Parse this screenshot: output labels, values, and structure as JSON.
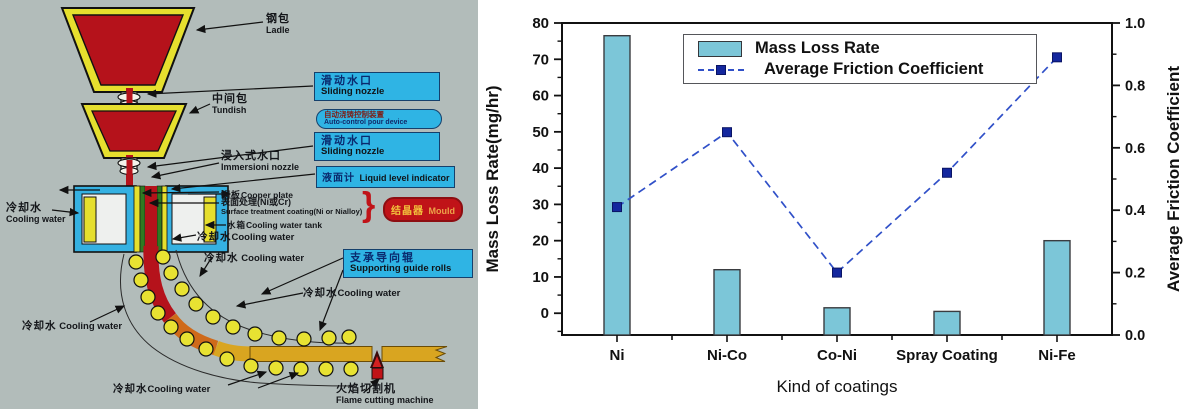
{
  "figure": {
    "left_panel": "continuous-casting-machine-diagram",
    "right_panel": "coatings-performance-chart"
  },
  "diagram": {
    "background_color": "#b2bcba",
    "callout_box_color": "#2fb4e4",
    "steel_color": "#b5121b",
    "vessel_wall_color": "#e6df2e",
    "brace": "}",
    "labels": {
      "ladle": {
        "zh": "钢包",
        "en": "Ladle"
      },
      "sliding_nozzle_1": {
        "zh": "滑动水口",
        "en": "Sliding nozzle"
      },
      "tundish": {
        "zh": "中间包",
        "en": "Tundish"
      },
      "auto_control": {
        "zh": "自动浇铸控制装置",
        "en": "Auto-control pour device"
      },
      "sliding_nozzle_2": {
        "zh": "滑动水口",
        "en": "Sliding nozzle"
      },
      "immersion_nozzle": {
        "zh": "浸入式水口",
        "en": "Immersioni nozzle"
      },
      "liquid_level": {
        "zh": "液面计",
        "en": "Liquid level indicator"
      },
      "copper_plate": {
        "zh": "铜板",
        "en": "Cooper plate"
      },
      "surface_treatment": {
        "zh": "表面处理(Ni或Cr)",
        "en": "Surface treatment coating(Ni or Nialloy)"
      },
      "water_tank": {
        "zh": "水箱",
        "en": "Cooling water tank"
      },
      "cooling_water_mould": {
        "zh": "冷却水",
        "en": "Cooling water"
      },
      "cooling_water_left": {
        "zh": "冷却水",
        "en": "Cooling water"
      },
      "mould": {
        "zh": "结晶器",
        "en": "Mould"
      },
      "cooling_water_roll1": {
        "zh": "冷却水",
        "en": "Cooling water"
      },
      "supporting_rolls": {
        "zh": "支承导向辊",
        "en": "Supporting guide rolls"
      },
      "cooling_water_roll2": {
        "zh": "冷却水",
        "en": "Cooling water"
      },
      "cooling_water_left_low": {
        "zh": "冷却水",
        "en": "Cooling water"
      },
      "cooling_water_bottom": {
        "zh": "冷却水",
        "en": "Cooling water"
      },
      "flame_cutter": {
        "zh": "火焰切割机",
        "en": "Flame cutting machine"
      }
    }
  },
  "chart_data": {
    "type": "bar+line",
    "categories": [
      "Ni",
      "Ni-Co",
      "Co-Ni",
      "Spray Coating",
      "Ni-Fe"
    ],
    "series": [
      {
        "name": "Mass Loss Rate",
        "type": "bar",
        "axis": "left",
        "values": [
          76.5,
          12,
          1.5,
          0.5,
          20
        ],
        "color": "#7cc6d8",
        "border_color": "#3a3c40"
      },
      {
        "name": "Average Friction Coefficient",
        "type": "line",
        "axis": "right",
        "values": [
          0.41,
          0.65,
          0.2,
          0.52,
          0.89
        ],
        "color": "#3050c8",
        "marker_color": "#14279e"
      }
    ],
    "xlabel": "Kind of coatings",
    "ylabel_left": "Mass Loss Rate(mg/hr)",
    "ylabel_right": "Average Friction Coefficient",
    "ylim_left": [
      -6,
      80
    ],
    "ylim_right": [
      0,
      1
    ],
    "yticks_left": [
      "0",
      "10",
      "20",
      "30",
      "40",
      "50",
      "60",
      "70",
      "80"
    ],
    "yticks_right": [
      "0.0",
      "0.2",
      "0.4",
      "0.6",
      "0.8",
      "1.0"
    ],
    "yminor_left": 5,
    "yminor_right": 0.1,
    "grid": false,
    "legend_position": "top-center",
    "axis_color": "#111111",
    "background": "#ffffff"
  }
}
